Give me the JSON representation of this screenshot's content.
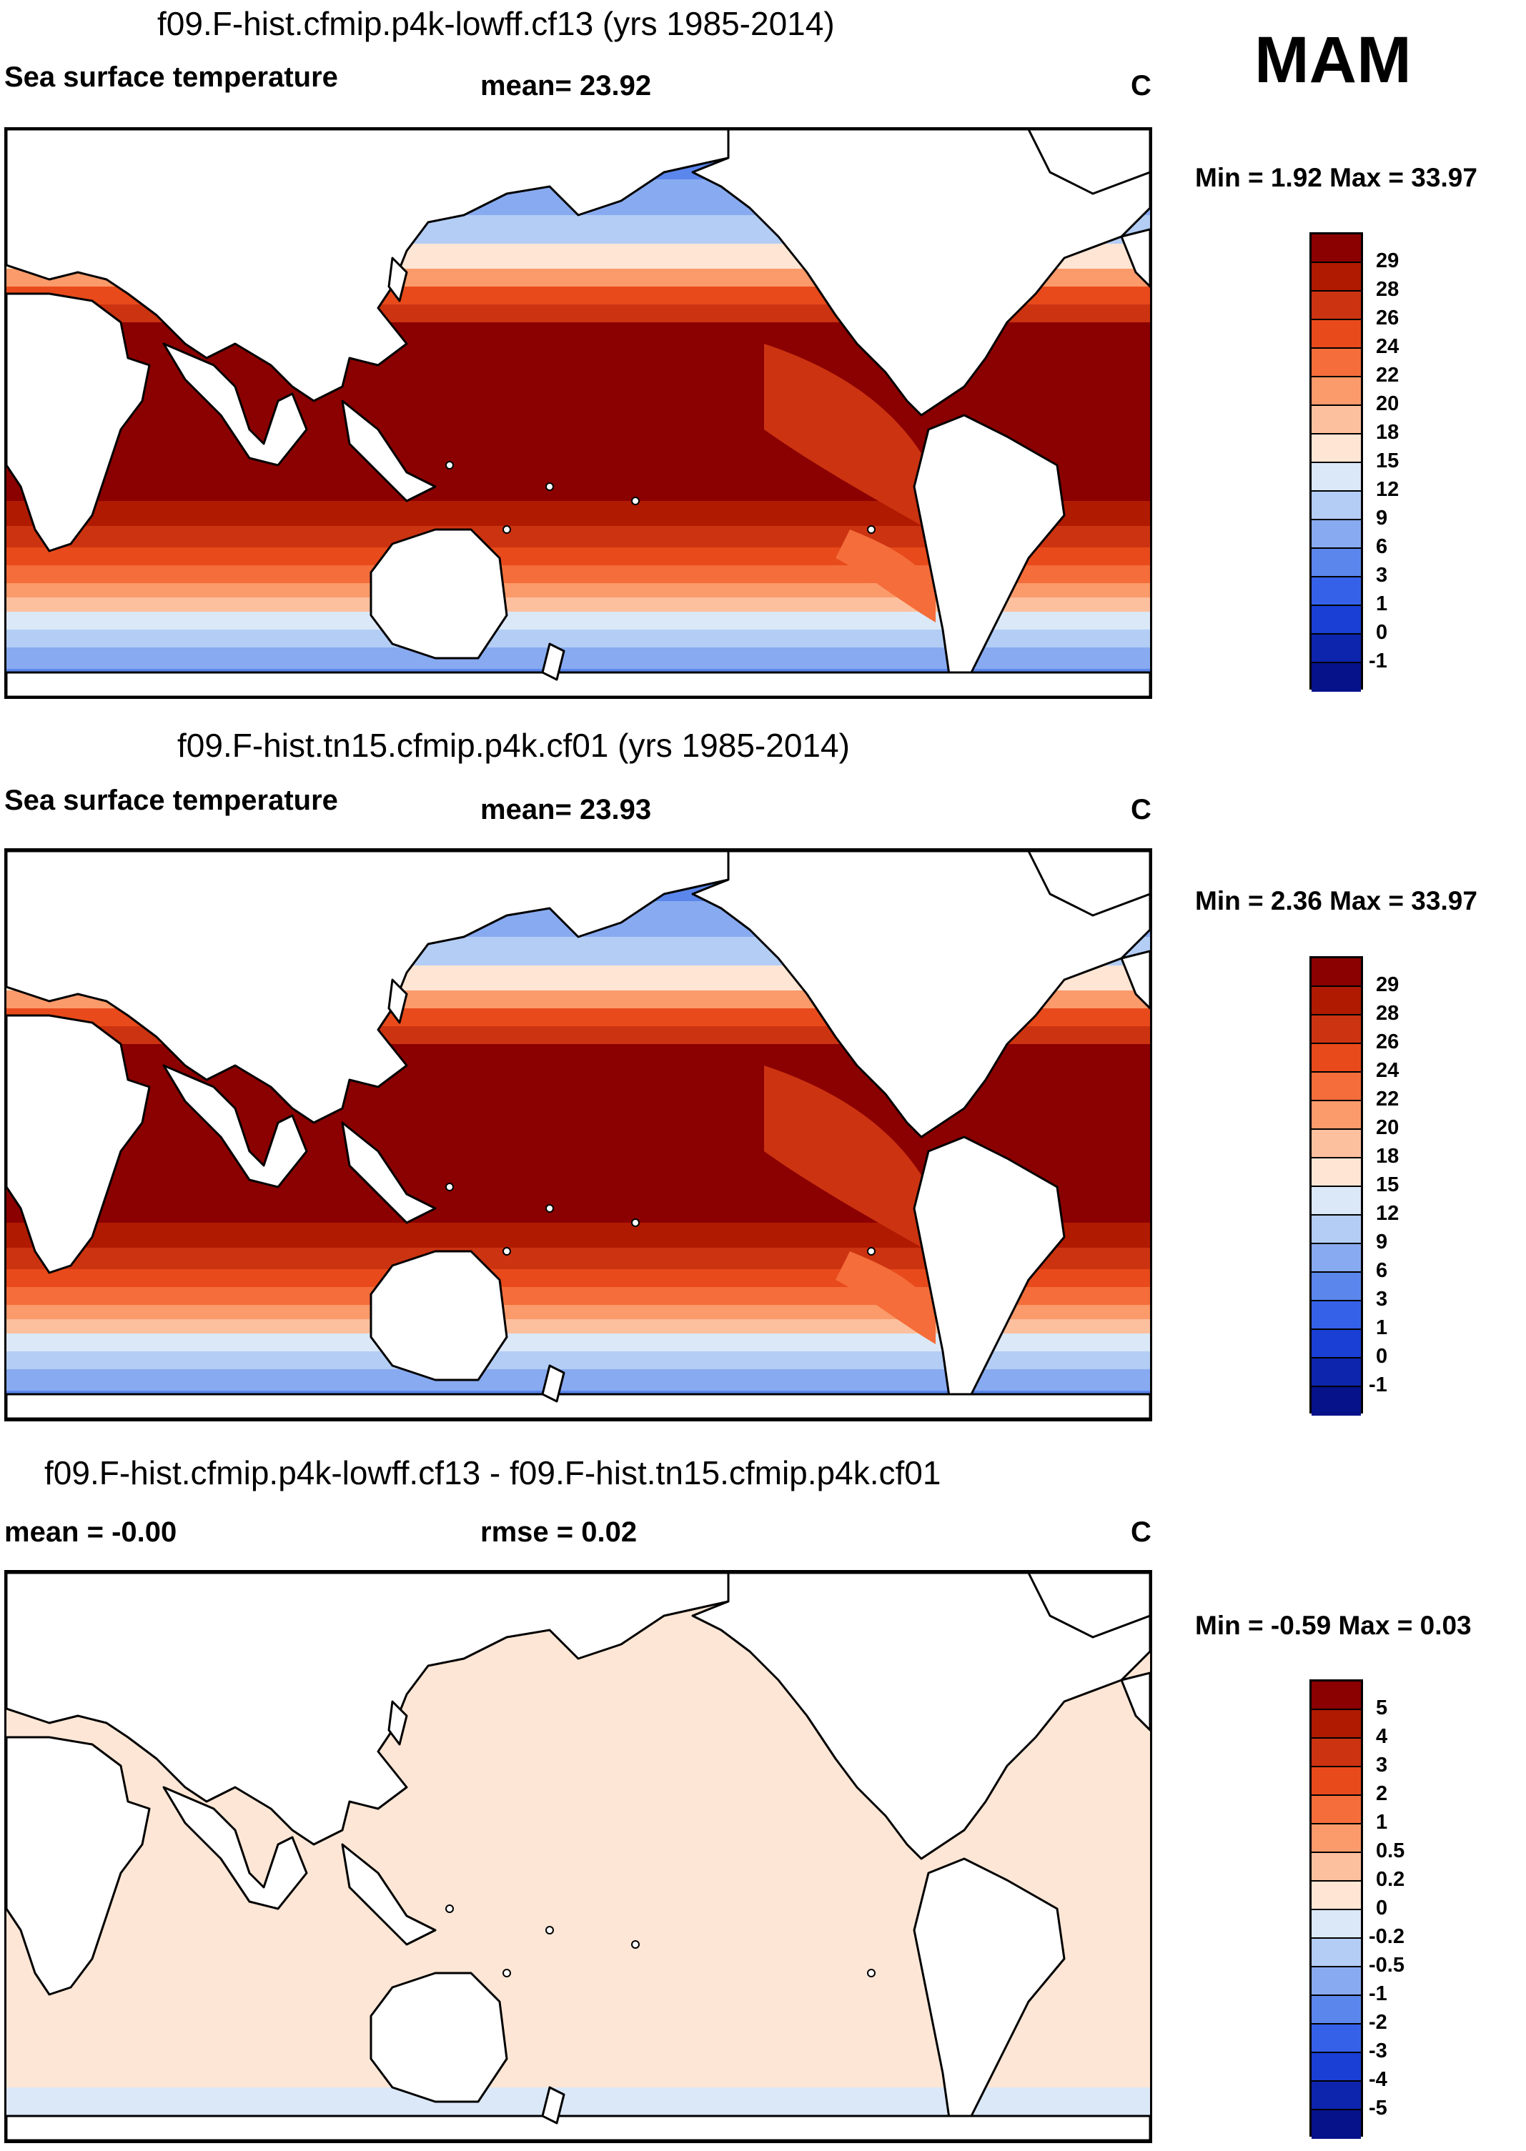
{
  "season": "MAM",
  "panels": [
    {
      "title": "f09.F-hist.cfmip.p4k-lowff.cf13 (yrs 1985-2014)",
      "left_label": "Sea surface temperature",
      "center_label": "mean=  23.92",
      "units": "C",
      "minmax": "Min =   1.92 Max =  33.97",
      "colorbar": {
        "labels": [
          "29",
          "28",
          "26",
          "24",
          "22",
          "20",
          "18",
          "15",
          "12",
          "9",
          "6",
          "3",
          "1",
          "0",
          "-1"
        ],
        "colors": [
          "#8b0000",
          "#b01a00",
          "#cc3311",
          "#e84a1b",
          "#f46d3a",
          "#fb9a6a",
          "#fdc09e",
          "#fee5d4",
          "#dbe8f8",
          "#b3cdf5",
          "#88aaf0",
          "#5b86ec",
          "#3561e8",
          "#1a3fd4",
          "#0d24ac",
          "#06128a"
        ]
      }
    },
    {
      "title": "f09.F-hist.tn15.cfmip.p4k.cf01 (yrs 1985-2014)",
      "left_label": "Sea surface temperature",
      "center_label": "mean=  23.93",
      "units": "C",
      "minmax": "Min =   2.36 Max =  33.97",
      "colorbar": {
        "labels": [
          "29",
          "28",
          "26",
          "24",
          "22",
          "20",
          "18",
          "15",
          "12",
          "9",
          "6",
          "3",
          "1",
          "0",
          "-1"
        ],
        "colors": [
          "#8b0000",
          "#b01a00",
          "#cc3311",
          "#e84a1b",
          "#f46d3a",
          "#fb9a6a",
          "#fdc09e",
          "#fee5d4",
          "#dbe8f8",
          "#b3cdf5",
          "#88aaf0",
          "#5b86ec",
          "#3561e8",
          "#1a3fd4",
          "#0d24ac",
          "#06128a"
        ]
      }
    },
    {
      "title": "f09.F-hist.cfmip.p4k-lowff.cf13 - f09.F-hist.tn15.cfmip.p4k.cf01",
      "left_label": "mean =  -0.00",
      "center_label": "rmse =   0.02",
      "units": "C",
      "minmax": "Min =  -0.59 Max =   0.03",
      "colorbar": {
        "labels": [
          "5",
          "4",
          "3",
          "2",
          "1",
          "0.5",
          "0.2",
          "0",
          "-0.2",
          "-0.5",
          "-1",
          "-2",
          "-3",
          "-4",
          "-5"
        ],
        "colors": [
          "#8b0000",
          "#b01a00",
          "#cc3311",
          "#e84a1b",
          "#f46d3a",
          "#fb9a6a",
          "#fdc09e",
          "#fee5d4",
          "#dbe8f8",
          "#b3cdf5",
          "#88aaf0",
          "#5b86ec",
          "#3561e8",
          "#1a3fd4",
          "#0d24ac",
          "#06128a"
        ]
      }
    }
  ],
  "map_colors": {
    "land": "#ffffff",
    "coast": "#000000",
    "warm_pool": "#8b0000",
    "diff_fill": "#fde6d5",
    "diff_ice_edge": "#dbe8f8"
  }
}
